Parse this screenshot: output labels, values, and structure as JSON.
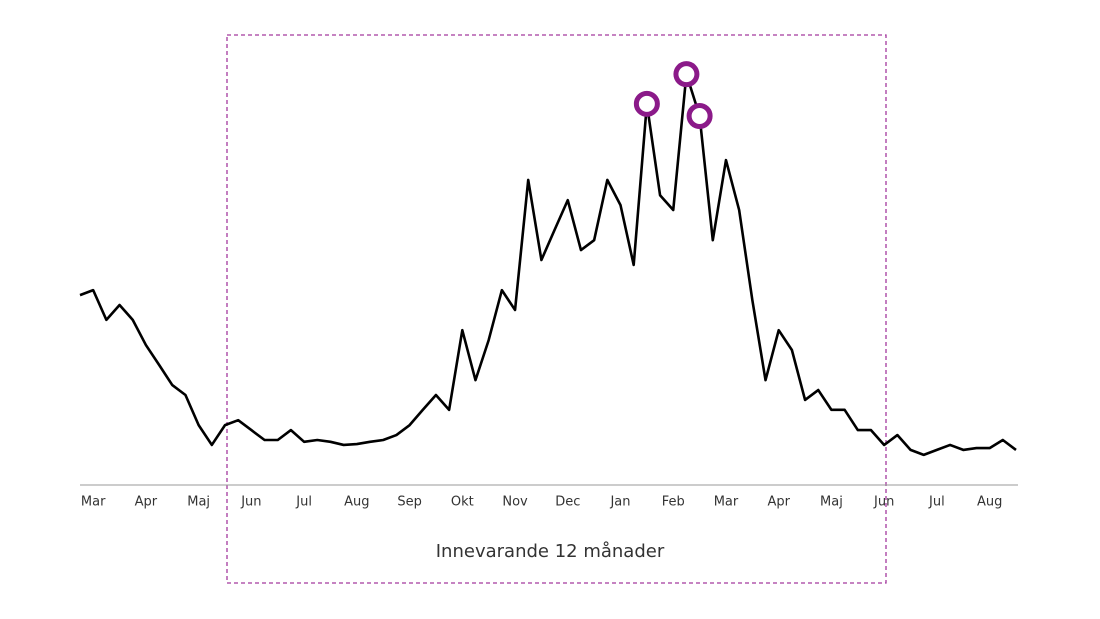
{
  "chart_data": {
    "type": "line",
    "annotation": "Innevarande 12 månader",
    "categories": [
      null,
      "Mar",
      null,
      null,
      null,
      "Apr",
      null,
      null,
      null,
      "Maj",
      null,
      null,
      null,
      "Jun",
      null,
      null,
      null,
      "Jul",
      null,
      null,
      null,
      "Aug",
      null,
      null,
      null,
      "Sep",
      null,
      null,
      null,
      "Okt",
      null,
      null,
      null,
      "Nov",
      null,
      null,
      null,
      "Dec",
      null,
      null,
      null,
      "Jan",
      null,
      null,
      null,
      "Feb",
      null,
      null,
      null,
      "Mar",
      null,
      null,
      null,
      "Apr",
      null,
      null,
      null,
      "Maj",
      null,
      null,
      null,
      "Jun",
      null,
      null,
      null,
      "Jul",
      null,
      null,
      null,
      "Aug",
      null,
      null
    ],
    "values": [
      42.2,
      43.3,
      36.7,
      40,
      36.7,
      31.1,
      26.7,
      22.2,
      20,
      13.3,
      8.9,
      13.3,
      14.4,
      12.2,
      10,
      10,
      12.2,
      9.6,
      10,
      9.6,
      8.9,
      9.1,
      9.6,
      10,
      11.1,
      13.3,
      16.7,
      20,
      16.7,
      34.4,
      23.3,
      32.2,
      43.3,
      38.9,
      67.8,
      50,
      56.7,
      63.3,
      52.2,
      54.4,
      67.8,
      62.2,
      48.9,
      84.7,
      64.4,
      61.1,
      91.3,
      82,
      54.4,
      72.2,
      61.1,
      41.1,
      23.3,
      34.4,
      30,
      18.9,
      21.1,
      16.7,
      16.7,
      12.2,
      12.2,
      8.9,
      11.1,
      7.8,
      6.7,
      7.8,
      8.9,
      7.8,
      8.2,
      8.2,
      10,
      7.8
    ],
    "color": "#000000",
    "highlight_color": "#8b1a89",
    "ylim": [
      0,
      100
    ]
  }
}
